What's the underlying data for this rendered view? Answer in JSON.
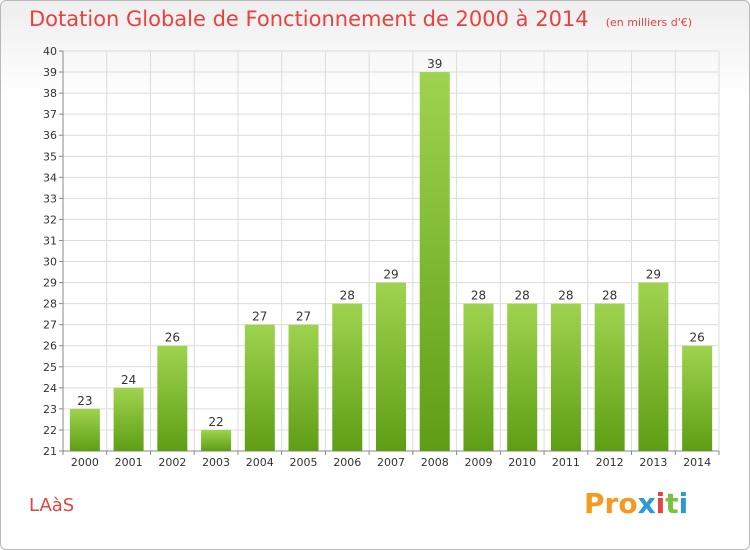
{
  "page": {
    "title": "Dotation Globale de Fonctionnement de 2000 à 2014",
    "unit": "(en milliers d'€)",
    "commune": "LAàS",
    "logo_letters": [
      "P",
      "r",
      "o",
      "x",
      "i",
      "t",
      "i"
    ]
  },
  "colors": {
    "title": "#e8413f",
    "bar_top": "#9fd34f",
    "bar_bottom": "#5e9e14",
    "grid": "#dcdcdc",
    "logo": [
      "#f39a1f",
      "#f39a1f",
      "#f39a1f",
      "#2a9ad8",
      "#e8413f",
      "#7cc242",
      "#2a9ad8"
    ]
  },
  "chart_data": {
    "type": "bar",
    "title": "Dotation Globale de Fonctionnement de 2000 à 2014",
    "subtitle": "(en milliers d'€)",
    "categories": [
      "2000",
      "2001",
      "2002",
      "2003",
      "2004",
      "2005",
      "2006",
      "2007",
      "2008",
      "2009",
      "2010",
      "2011",
      "2012",
      "2013",
      "2014"
    ],
    "values": [
      23,
      24,
      26,
      22,
      27,
      27,
      28,
      29,
      39,
      28,
      28,
      28,
      28,
      29,
      26
    ],
    "ylim": [
      21,
      40
    ],
    "yticks": [
      21,
      22,
      23,
      24,
      25,
      26,
      27,
      28,
      29,
      30,
      31,
      32,
      33,
      34,
      35,
      36,
      37,
      38,
      39,
      40
    ],
    "grid": true,
    "xlabel": "",
    "ylabel": ""
  }
}
